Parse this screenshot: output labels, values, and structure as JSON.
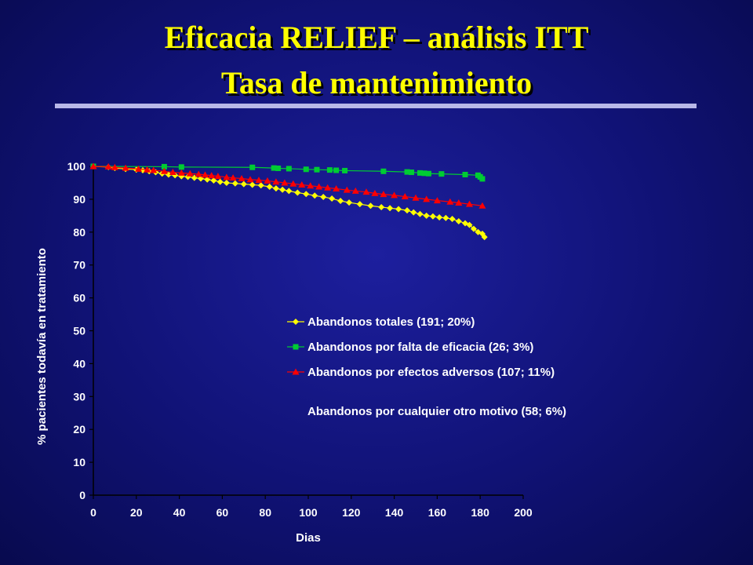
{
  "title": {
    "line1": "Eficacia RELIEF – análisis ITT",
    "line2": "Tasa de mantenimiento"
  },
  "chart_data": {
    "type": "line",
    "xlabel": "Dias",
    "ylabel": "% pacientes todavía en tratamiento",
    "xlim": [
      0,
      200
    ],
    "ylim": [
      0,
      100
    ],
    "x_ticks": [
      0,
      20,
      40,
      60,
      80,
      100,
      120,
      140,
      160,
      180,
      200
    ],
    "y_ticks": [
      0,
      10,
      20,
      30,
      40,
      50,
      60,
      70,
      80,
      90,
      100
    ],
    "grid": false,
    "legend_position": "center-right",
    "series": [
      {
        "name": "Abandonos totales (191; 20%)",
        "color": "#ffff00",
        "marker": "diamond",
        "x": [
          0,
          7,
          10,
          15,
          20,
          23,
          26,
          29,
          32,
          35,
          38,
          41,
          44,
          47,
          50,
          53,
          56,
          59,
          62,
          66,
          70,
          74,
          78,
          82,
          85,
          88,
          91,
          95,
          99,
          103,
          107,
          111,
          115,
          119,
          124,
          129,
          134,
          138,
          142,
          146,
          149,
          152,
          155,
          158,
          161,
          164,
          167,
          170,
          173,
          175,
          177,
          179,
          181,
          182
        ],
        "values": [
          100,
          99.8,
          99.5,
          99.2,
          99.0,
          98.8,
          98.5,
          98.2,
          97.8,
          97.5,
          97.3,
          97.0,
          96.8,
          96.5,
          96.3,
          96.0,
          95.7,
          95.3,
          95.0,
          94.8,
          94.6,
          94.4,
          94.2,
          93.8,
          93.3,
          92.9,
          92.5,
          92.0,
          91.6,
          91.1,
          90.7,
          90.2,
          89.5,
          89.0,
          88.5,
          88.0,
          87.6,
          87.3,
          87.0,
          86.6,
          86.0,
          85.5,
          85.0,
          84.8,
          84.5,
          84.3,
          84.0,
          83.3,
          82.7,
          82.2,
          81.0,
          80.0,
          79.5,
          78.5
        ]
      },
      {
        "name": "Abandonos por falta de eficacia (26; 3%)",
        "color": "#00cc33",
        "marker": "square",
        "x": [
          0,
          33,
          41,
          74,
          84,
          86,
          91,
          99,
          104,
          110,
          113,
          117,
          135,
          146,
          148,
          152,
          154,
          156,
          162,
          173,
          179,
          180,
          181
        ],
        "values": [
          100,
          99.9,
          99.8,
          99.7,
          99.5,
          99.4,
          99.3,
          99.1,
          99.0,
          98.9,
          98.8,
          98.7,
          98.5,
          98.3,
          98.2,
          98.0,
          97.9,
          97.8,
          97.7,
          97.5,
          97.3,
          96.8,
          96.2
        ]
      },
      {
        "name": "Abandonos por efectos adversos (107; 11%)",
        "color": "#ff0000",
        "marker": "triangle",
        "x": [
          0,
          7,
          10,
          15,
          21,
          25,
          28,
          33,
          37,
          41,
          45,
          49,
          52,
          55,
          58,
          62,
          65,
          69,
          73,
          77,
          81,
          85,
          89,
          93,
          97,
          101,
          105,
          109,
          113,
          118,
          122,
          127,
          131,
          135,
          140,
          145,
          150,
          155,
          160,
          166,
          170,
          175,
          181
        ],
        "values": [
          100,
          99.9,
          99.7,
          99.5,
          99.2,
          99.0,
          98.8,
          98.5,
          98.2,
          98.0,
          97.8,
          97.6,
          97.4,
          97.2,
          97.0,
          96.7,
          96.5,
          96.3,
          96.0,
          95.8,
          95.6,
          95.3,
          95.0,
          94.7,
          94.4,
          94.1,
          93.8,
          93.5,
          93.2,
          92.8,
          92.5,
          92.2,
          91.8,
          91.5,
          91.2,
          90.8,
          90.4,
          90.0,
          89.6,
          89.2,
          88.9,
          88.5,
          88.0
        ]
      }
    ],
    "legend_extra_entry": "Abandonos por cualquier otro motivo (58; 6%)"
  }
}
